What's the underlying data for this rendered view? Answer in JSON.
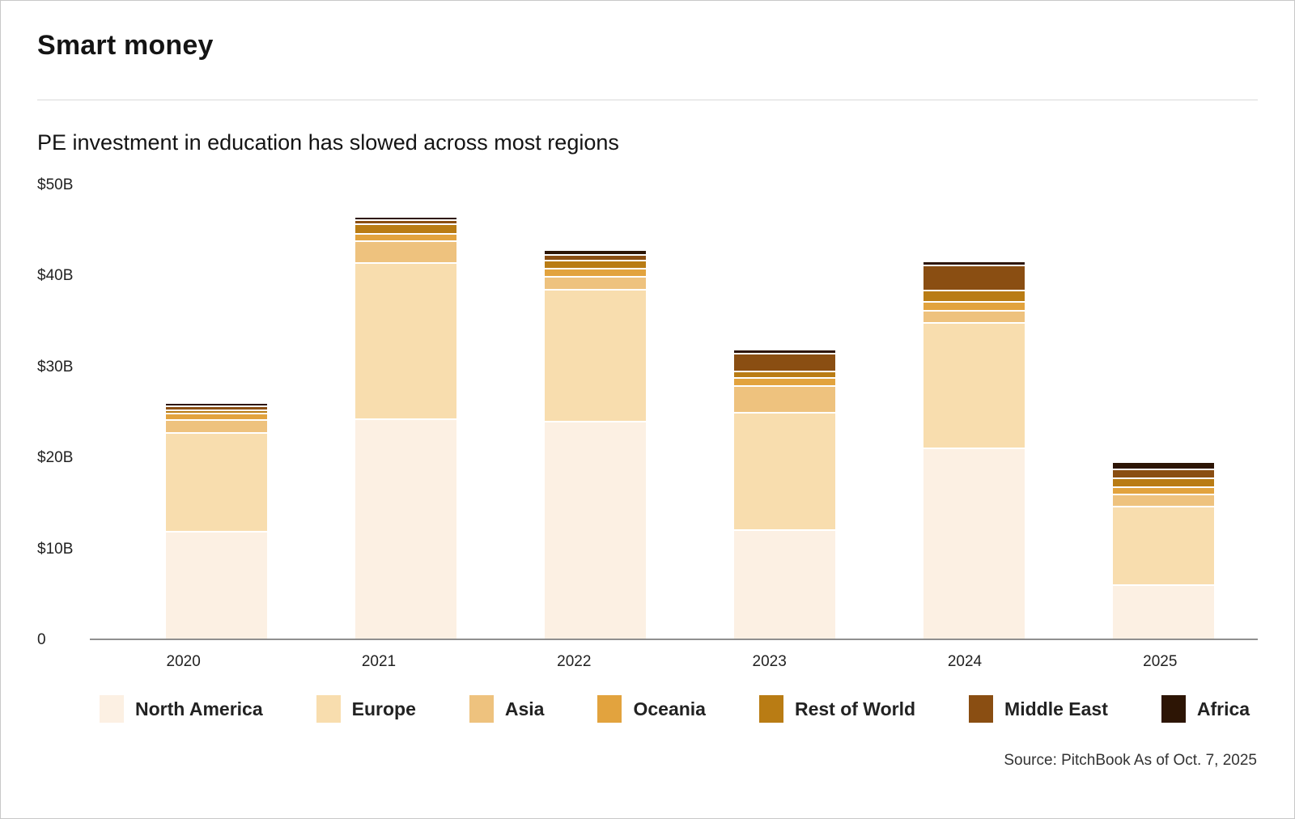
{
  "header": {
    "title": "Smart money",
    "subtitle": "PE investment in education has slowed across most regions"
  },
  "source_text": "Source: PitchBook As of Oct. 7, 2025",
  "chart_data": {
    "type": "bar",
    "stacked": true,
    "title": "Smart money",
    "subtitle": "PE investment in education has slowed across most regions",
    "unit": "billions USD",
    "categories": [
      "2020",
      "2021",
      "2022",
      "2023",
      "2024",
      "2025"
    ],
    "ylim": [
      0,
      50
    ],
    "yticks": [
      {
        "label": "$50B",
        "value": 50
      },
      {
        "label": "$40B",
        "value": 40
      },
      {
        "label": "$30B",
        "value": 30
      },
      {
        "label": "$20B",
        "value": 20
      },
      {
        "label": "$10B",
        "value": 10
      },
      {
        "label": "0",
        "value": 0
      }
    ],
    "grid": false,
    "legend_position": "bottom",
    "series": [
      {
        "name": "North America",
        "color": "#fcf0e3",
        "values": [
          11.8,
          24.2,
          23.9,
          12.0,
          21.0,
          6.0
        ]
      },
      {
        "name": "Europe",
        "color": "#f8ddae",
        "values": [
          10.7,
          17.0,
          14.4,
          12.7,
          13.6,
          8.4
        ]
      },
      {
        "name": "Asia",
        "color": "#eec27e",
        "values": [
          1.3,
          2.2,
          1.2,
          2.8,
          1.2,
          1.2
        ]
      },
      {
        "name": "Oceania",
        "color": "#e2a33e",
        "values": [
          0.5,
          0.6,
          0.7,
          0.7,
          0.8,
          0.6
        ]
      },
      {
        "name": "Rest of World",
        "color": "#b97c14",
        "values": [
          0.2,
          0.9,
          0.7,
          0.5,
          1.0,
          0.8
        ]
      },
      {
        "name": "Middle East",
        "color": "#8a4e12",
        "values": [
          0.2,
          0.3,
          0.5,
          1.8,
          2.6,
          0.8
        ]
      },
      {
        "name": "Africa",
        "color": "#2d1505",
        "values": [
          0.1,
          0.2,
          0.3,
          0.3,
          0.3,
          0.6
        ]
      }
    ]
  }
}
